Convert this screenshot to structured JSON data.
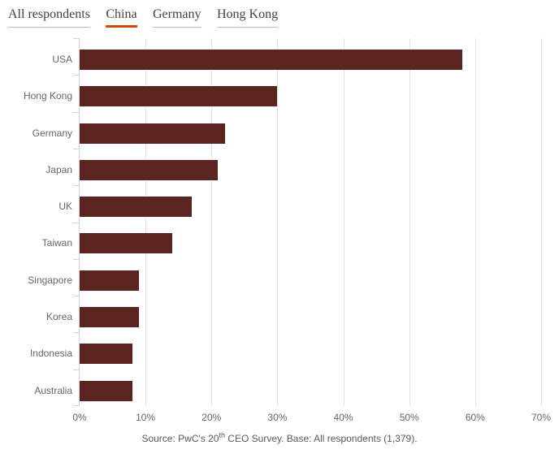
{
  "tabs": {
    "active_index": 1,
    "items": [
      {
        "label": "All respondents"
      },
      {
        "label": "China"
      },
      {
        "label": "Germany"
      },
      {
        "label": "Hong Kong"
      }
    ]
  },
  "chart_data": {
    "type": "bar",
    "orientation": "horizontal",
    "categories": [
      "USA",
      "Hong Kong",
      "Germany",
      "Japan",
      "UK",
      "Taiwan",
      "Singapore",
      "Korea",
      "Indonesia",
      "Australia"
    ],
    "values": [
      58,
      30,
      22,
      21,
      17,
      14,
      9,
      9,
      8,
      8
    ],
    "unit": "%",
    "xlim": [
      0,
      70
    ],
    "x_tick_labels": [
      "0%",
      "10%",
      "20%",
      "30%",
      "40%",
      "50%",
      "60%",
      "70%"
    ],
    "grid": "vertical",
    "legend": "none",
    "title": "",
    "xlabel": "",
    "ylabel": ""
  },
  "source": {
    "prefix": "Source: PwC's 20",
    "superscript": "th",
    "suffix": " CEO Survey. Base: All respondents (1,379)."
  },
  "colors": {
    "bar": "#5C2421",
    "active_tab_underline": "#D04A02",
    "inactive_tab_underline": "#BDBDBD",
    "axis_line": "#C9D4E2",
    "gridline": "#E4E4E4",
    "tab_text": "#40403F",
    "axis_label_text": "#666666",
    "source_text": "#595959"
  }
}
